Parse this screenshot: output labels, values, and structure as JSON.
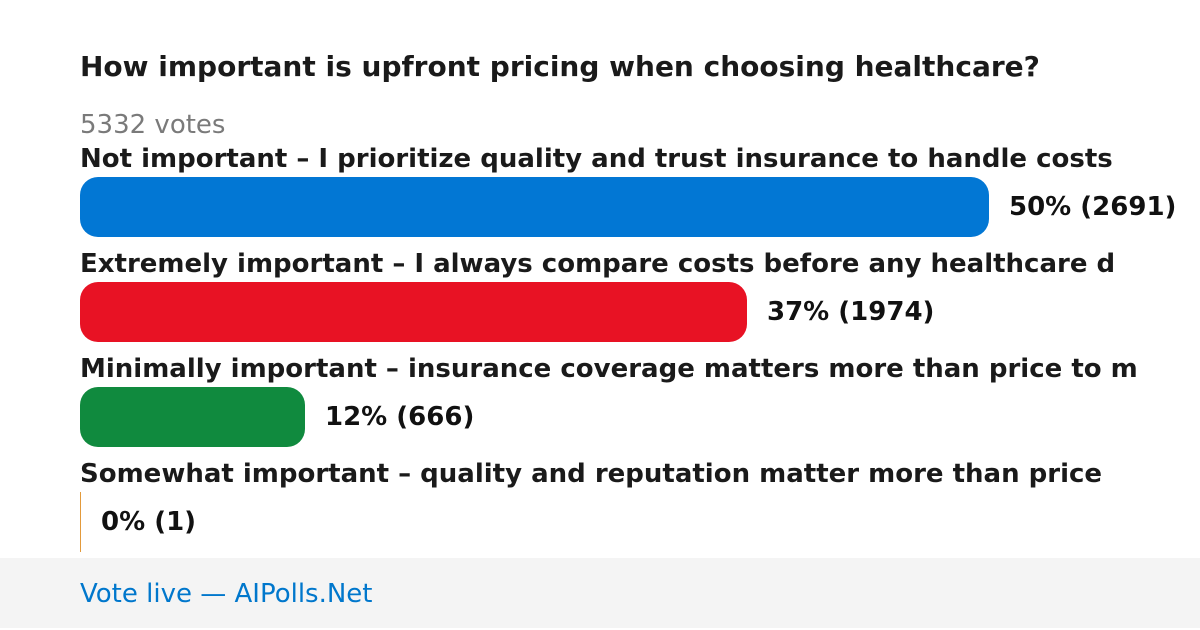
{
  "poll": {
    "question": "How important is upfront pricing when choosing healthcare?",
    "votes_text": "5332 votes"
  },
  "chart_data": {
    "type": "bar",
    "orientation": "horizontal",
    "categories": [
      "Not important – I prioritize quality and trust insurance to handle costs",
      "Extremely important – I always compare costs before any healthcare d",
      "Minimally important – insurance coverage matters more than price to m",
      "Somewhat important – quality and reputation matter more than price"
    ],
    "series": [
      {
        "values": [
          2691,
          1974,
          666,
          1
        ]
      }
    ],
    "percent_labels": [
      "50% (2691)",
      "37% (1974)",
      "12% (666)",
      "0% (1)"
    ],
    "colors": [
      "#0277d4",
      "#e81224",
      "#108a3e",
      "#e39a3b"
    ],
    "total": 5332,
    "grid": false
  },
  "footer": {
    "link_text": "Vote live — AIPolls.Net"
  }
}
